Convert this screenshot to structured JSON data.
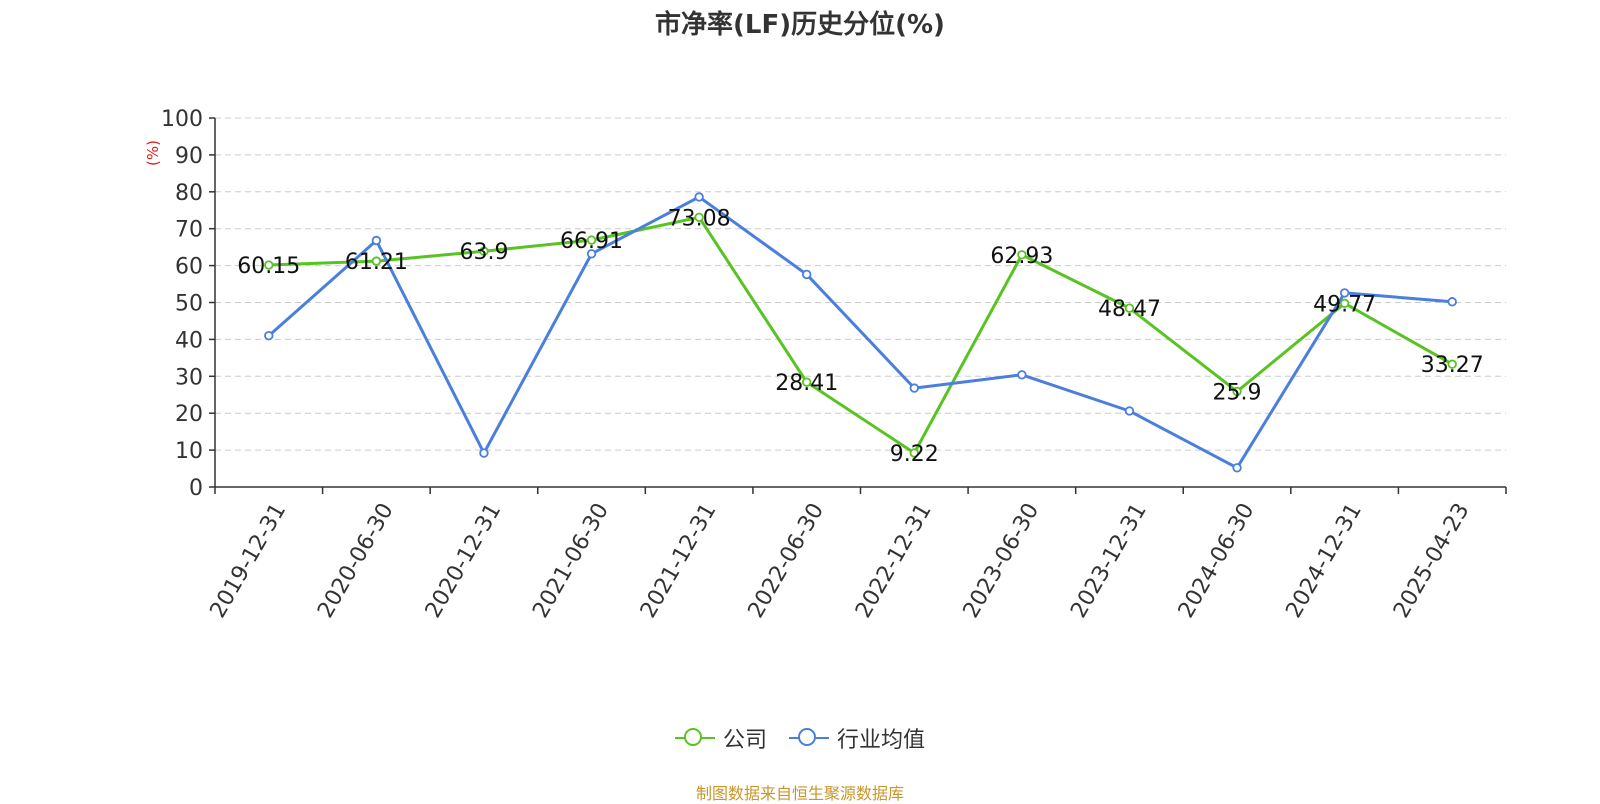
{
  "chart_data": {
    "type": "line",
    "title": "市净率(LF)历史分位(%)",
    "ylabel": "(%)",
    "ylim": [
      0,
      100
    ],
    "yticks": [
      "0",
      "10",
      "20",
      "30",
      "40",
      "50",
      "60",
      "70",
      "80",
      "90",
      "100"
    ],
    "categories": [
      "2019-12-31",
      "2020-06-30",
      "2020-12-31",
      "2021-06-30",
      "2021-12-31",
      "2022-06-30",
      "2022-12-31",
      "2023-06-30",
      "2023-12-31",
      "2024-06-30",
      "2024-12-31",
      "2025-04-23"
    ],
    "series": [
      {
        "name": "公司",
        "color": "#58c322",
        "values": [
          60.15,
          61.21,
          63.9,
          66.91,
          73.08,
          28.41,
          9.22,
          62.93,
          48.47,
          25.9,
          49.77,
          33.27
        ],
        "labels": [
          "60.15",
          "61.21",
          "63.9",
          "66.91",
          "73.08",
          "28.41",
          "9.22",
          "62.93",
          "48.47",
          "25.9",
          "49.77",
          "33.27"
        ]
      },
      {
        "name": "行业均值",
        "color": "#4a7fdd",
        "values": [
          41.0,
          66.8,
          9.2,
          63.2,
          78.6,
          57.6,
          26.8,
          30.4,
          20.6,
          5.2,
          52.6,
          50.2
        ]
      }
    ],
    "grid": true,
    "legend_position": "bottom-center",
    "source": "制图数据来自恒生聚源数据库"
  }
}
